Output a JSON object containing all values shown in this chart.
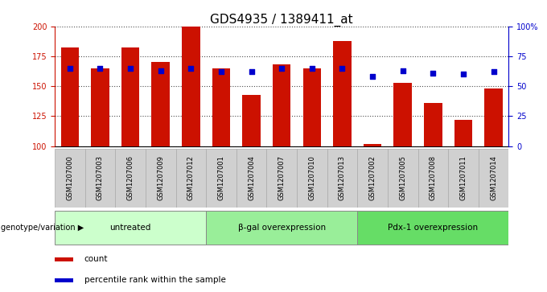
{
  "title": "GDS4935 / 1389411_at",
  "samples": [
    "GSM1207000",
    "GSM1207003",
    "GSM1207006",
    "GSM1207009",
    "GSM1207012",
    "GSM1207001",
    "GSM1207004",
    "GSM1207007",
    "GSM1207010",
    "GSM1207013",
    "GSM1207002",
    "GSM1207005",
    "GSM1207008",
    "GSM1207011",
    "GSM1207014"
  ],
  "counts": [
    182,
    165,
    182,
    170,
    200,
    165,
    143,
    168,
    165,
    188,
    102,
    153,
    136,
    122,
    148
  ],
  "percentiles": [
    65,
    65,
    65,
    63,
    65,
    62,
    62,
    65,
    65,
    65,
    58,
    63,
    61,
    60,
    62
  ],
  "groups": [
    {
      "label": "untreated",
      "start": 0,
      "end": 5,
      "color": "#ccffcc"
    },
    {
      "label": "β-gal overexpression",
      "start": 5,
      "end": 10,
      "color": "#99ee99"
    },
    {
      "label": "Pdx-1 overexpression",
      "start": 10,
      "end": 15,
      "color": "#66dd66"
    }
  ],
  "bar_color": "#cc1100",
  "dot_color": "#0000cc",
  "y_min": 100,
  "y_max": 200,
  "y_ticks": [
    100,
    125,
    150,
    175,
    200
  ],
  "right_y_ticks": [
    0,
    25,
    50,
    75,
    100
  ],
  "right_y_labels": [
    "0",
    "25",
    "50",
    "75",
    "100%"
  ],
  "bg_color": "#ffffff",
  "plot_bg": "#ffffff",
  "bar_color_label": "count",
  "dot_color_label": "percentile rank within the sample",
  "title_fontsize": 11,
  "tick_fontsize": 7,
  "label_fontsize": 7,
  "bar_width": 0.6,
  "grid_linestyle": ":",
  "grid_color": "#000000",
  "genotype_label": "genotype/variation",
  "sample_bg": "#cccccc",
  "group_border_color": "#888888"
}
